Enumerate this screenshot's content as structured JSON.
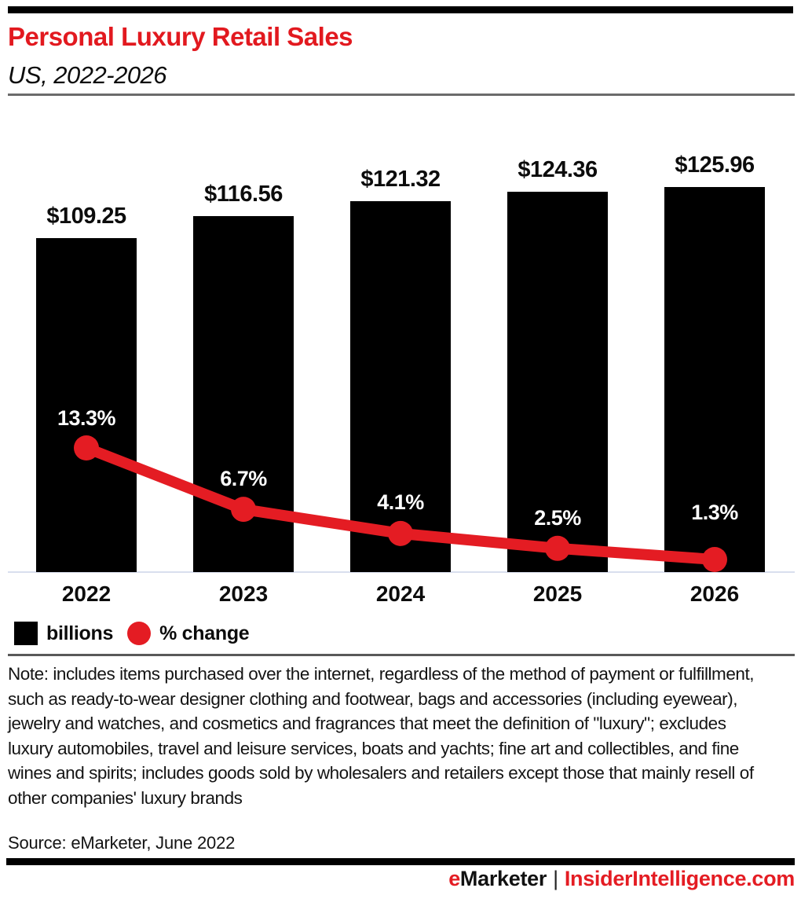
{
  "colors": {
    "brand_red": "#e41c23",
    "bar_black": "#000000",
    "axis_line": "#d9dfee",
    "title_red": "#e2191f"
  },
  "header": {
    "title": "Personal Luxury Retail Sales",
    "subtitle": "US, 2022-2026"
  },
  "chart_data": {
    "type": "bar",
    "title": "Personal Luxury Retail Sales",
    "subtitle": "US, 2022-2026",
    "categories": [
      "2022",
      "2023",
      "2024",
      "2025",
      "2026"
    ],
    "series": [
      {
        "name": "billions",
        "type": "bar",
        "color": "#000000",
        "values": [
          109.25,
          116.56,
          121.32,
          124.36,
          125.96
        ],
        "labels": [
          "$109.25",
          "$116.56",
          "$121.32",
          "$124.36",
          "$125.96"
        ]
      },
      {
        "name": "% change",
        "type": "line",
        "color": "#e41c23",
        "values": [
          13.3,
          6.7,
          4.1,
          2.5,
          1.3
        ],
        "labels": [
          "13.3%",
          "6.7%",
          "4.1%",
          "2.5%",
          "1.3%"
        ]
      }
    ],
    "ylabel": "",
    "xlabel": "",
    "ylim_bars": [
      0,
      125.96
    ],
    "grid": false,
    "legend_position": "bottom"
  },
  "legend": {
    "items": [
      {
        "label": "billions",
        "swatch": "square",
        "color": "#000000"
      },
      {
        "label": "% change",
        "swatch": "circle",
        "color": "#e41c23"
      }
    ]
  },
  "note": "Note: includes items purchased over the internet, regardless of the method of payment or fulfillment, such as ready-to-wear designer clothing and footwear, bags and accessories (including eyewear), jewelry and watches, and cosmetics and fragrances that meet the definition of \"luxury\"; excludes luxury automobiles, travel and leisure services, boats and yachts; fine art and collectibles, and fine wines and spirits; includes goods sold by wholesalers and retailers except those that mainly resell of other companies' luxury brands",
  "source": "Source: eMarketer, June 2022",
  "footer": {
    "brand_e": "e",
    "brand_rest": "Marketer",
    "separator": "|",
    "site": "InsiderIntelligence.com"
  }
}
